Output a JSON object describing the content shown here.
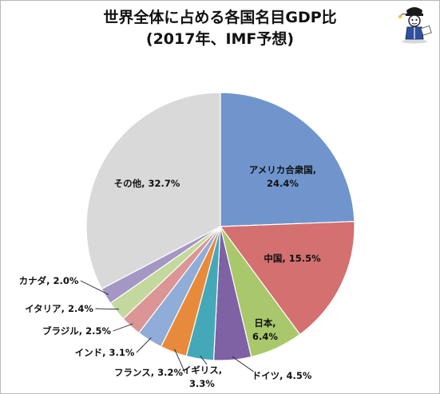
{
  "title": {
    "line1": "世界全体に占める各国名目GDP比",
    "line2": "(2017年、IMF予想)"
  },
  "colors": {
    "text": "#111111",
    "slice_border": "#ffffff",
    "leader_line": "#222222"
  },
  "mascot": {
    "icon": "mascot-icon"
  },
  "chart_data": {
    "type": "pie",
    "title": "世界全体に占める各国名目GDP比",
    "subtitle": "(2017年、IMF予想)",
    "start_angle_deg": 0,
    "direction": "clockwise",
    "slices": [
      {
        "label": "アメリカ合衆国",
        "value": 24.4,
        "display": "24.4%",
        "color": "#6f95cc"
      },
      {
        "label": "中国",
        "value": 15.5,
        "display": "15.5%",
        "color": "#d4706f"
      },
      {
        "label": "日本",
        "value": 6.4,
        "display": "6.4%",
        "color": "#a8c86b"
      },
      {
        "label": "ドイツ",
        "value": 4.5,
        "display": "4.5%",
        "color": "#7e62a3"
      },
      {
        "label": "イギリス",
        "value": 3.3,
        "display": "3.3%",
        "color": "#45a8b8"
      },
      {
        "label": "フランス",
        "value": 3.2,
        "display": "3.2%",
        "color": "#e88a3c"
      },
      {
        "label": "インド",
        "value": 3.1,
        "display": "3.1%",
        "color": "#8fadd8"
      },
      {
        "label": "ブラジル",
        "value": 2.5,
        "display": "2.5%",
        "color": "#dc9595"
      },
      {
        "label": "イタリア",
        "value": 2.4,
        "display": "2.4%",
        "color": "#c3d89c"
      },
      {
        "label": "カナダ",
        "value": 2.0,
        "display": "2.0%",
        "color": "#a597c4"
      },
      {
        "label": "その他",
        "value": 32.7,
        "display": "32.7%",
        "color": "#d9d9d9"
      }
    ]
  }
}
